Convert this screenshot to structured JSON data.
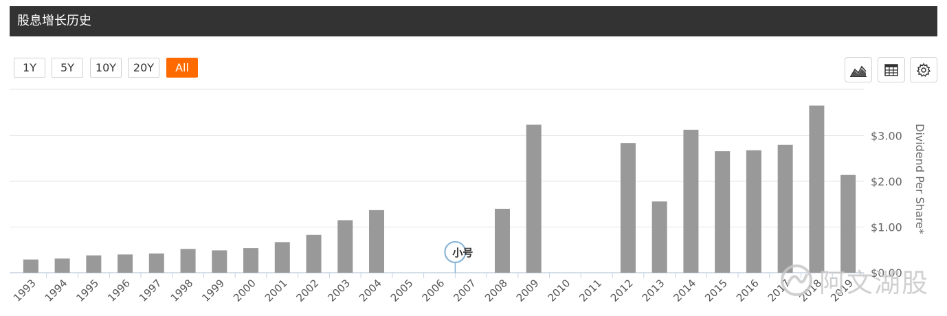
{
  "header": {
    "title": "股息增长历史"
  },
  "range_buttons": [
    {
      "label": "1Y",
      "active": false
    },
    {
      "label": "5Y",
      "active": false
    },
    {
      "label": "10Y",
      "active": false
    },
    {
      "label": "20Y",
      "active": false
    },
    {
      "label": "All",
      "active": true
    }
  ],
  "toolbar": {
    "icons": [
      "area-chart-icon",
      "table-icon",
      "gear-icon"
    ]
  },
  "annotation": {
    "label": "小号"
  },
  "watermark": {
    "text": "阿文湖股"
  },
  "colors": {
    "bar": "#999999",
    "active_button": "#ff6a00",
    "header_bg": "#333333",
    "annotation": "#7fb0d6"
  },
  "chart_data": {
    "type": "bar",
    "categories": [
      "1993",
      "1994",
      "1995",
      "1996",
      "1997",
      "1998",
      "1999",
      "2000",
      "2001",
      "2002",
      "2003",
      "2004",
      "2005",
      "2006",
      "2007",
      "2008",
      "2009",
      "2010",
      "2011",
      "2012",
      "2013",
      "2014",
      "2015",
      "2016",
      "2017",
      "2018",
      "2019"
    ],
    "values": [
      0.29,
      0.31,
      0.38,
      0.4,
      0.42,
      0.52,
      0.49,
      0.54,
      0.67,
      0.83,
      1.15,
      1.37,
      0,
      0,
      0,
      1.4,
      3.24,
      0,
      0,
      2.84,
      1.56,
      3.13,
      2.66,
      2.68,
      2.8,
      3.66,
      2.14
    ],
    "ylabel": "Dividend Per Share*",
    "yticks": [
      "$0.00",
      "$1.00",
      "$2.00",
      "$3.00"
    ],
    "ylim": [
      0,
      4
    ],
    "grid": true,
    "annotation_category": "2006"
  }
}
